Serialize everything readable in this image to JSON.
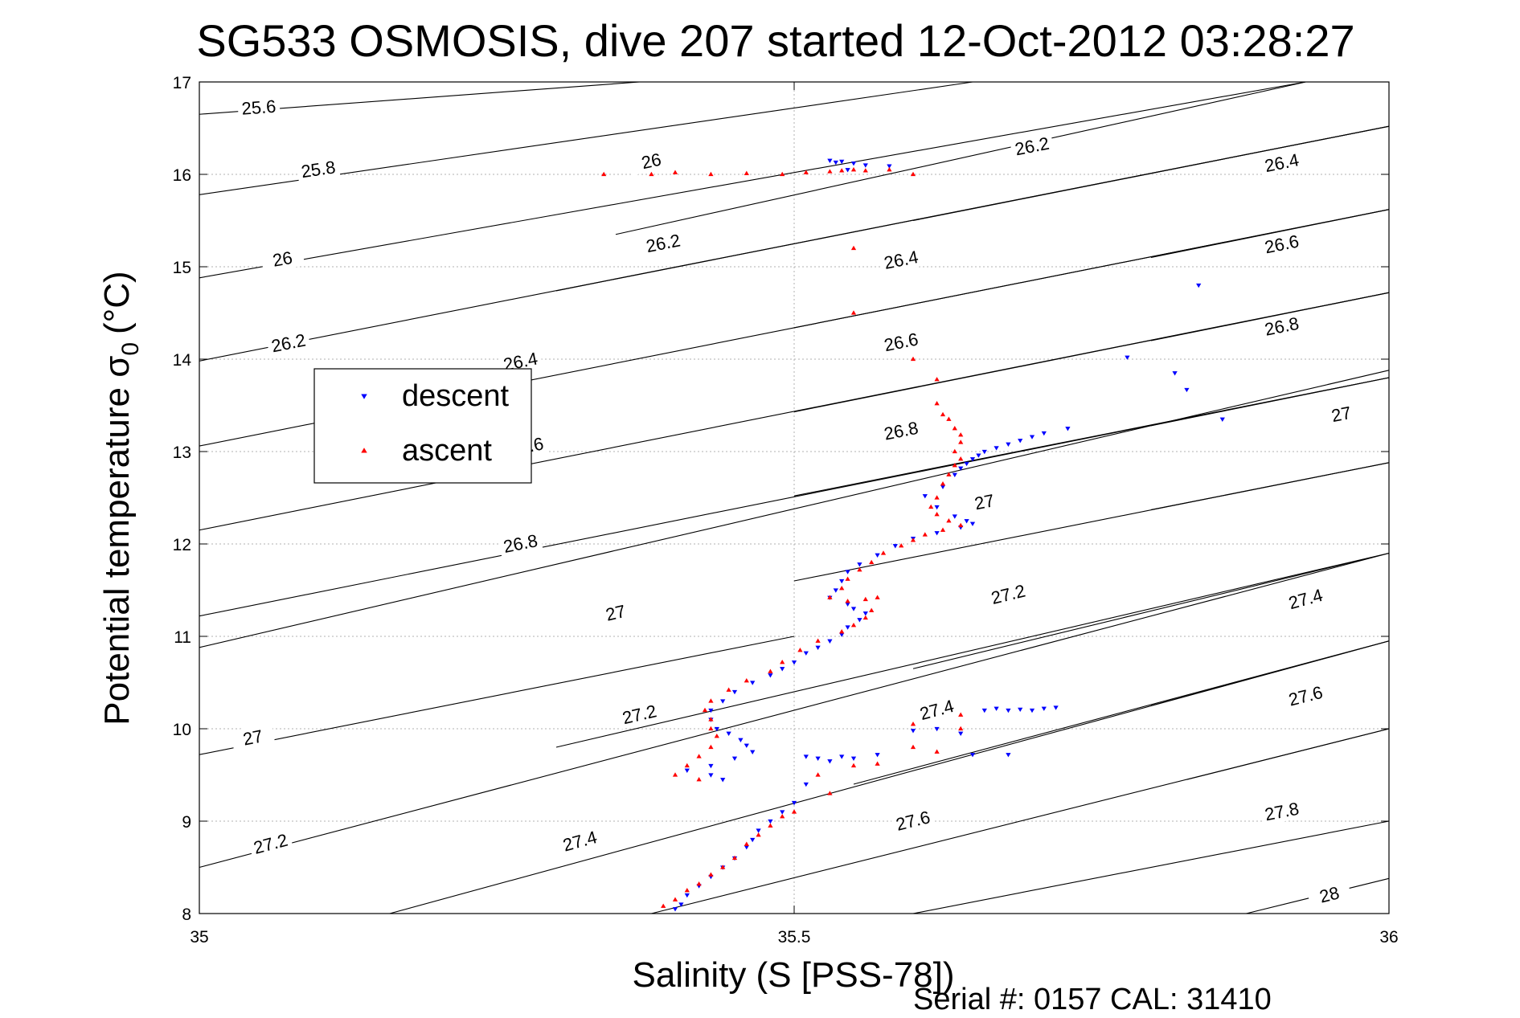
{
  "chart_data": {
    "type": "scatter",
    "title": "SG533 OSMOSIS, dive 207 started 12-Oct-2012 03:28:27",
    "xlabel": "Salinity (S [PSS-78])",
    "ylabel_main": "Potential temperature σ",
    "ylabel_sub": "0",
    "ylabel_unit": "(°C)",
    "xlim": [
      35,
      36
    ],
    "ylim": [
      8,
      17
    ],
    "x_ticks": [
      35,
      35.5,
      36
    ],
    "x_tick_labels": [
      "35",
      "35.5",
      "36"
    ],
    "y_ticks": [
      8,
      9,
      10,
      11,
      12,
      13,
      14,
      15,
      16,
      17
    ],
    "y_tick_labels": [
      "8",
      "9",
      "10",
      "11",
      "12",
      "13",
      "14",
      "15",
      "16",
      "17"
    ],
    "grid": true,
    "legend_position": "upper-left",
    "footer": "Serial #: 0157  CAL: 31410",
    "contour_lines": [
      {
        "label": "25.6",
        "x0": 35,
        "y0": 16.65,
        "x1": 35.37,
        "y1": 17.0,
        "lx": 35.05,
        "ly": 16.72
      },
      {
        "label": "25.8",
        "x0": 35,
        "y0": 15.78,
        "x1": 35.65,
        "y1": 17.0,
        "lx": 35.1,
        "ly": 16.05
      },
      {
        "label": "26",
        "x0": 35,
        "y0": 14.88,
        "x1": 35.93,
        "y1": 17.0,
        "lx": 35.07,
        "ly": 15.08
      },
      {
        "label": "26",
        "x0": 35.35,
        "y0": 15.35,
        "x1": 35.93,
        "y1": 17.0,
        "lx": 35.38,
        "ly": 16.14
      },
      {
        "label": "26.2",
        "x0": 35,
        "y0": 13.98,
        "x1": 36,
        "y1": 16.52,
        "lx": 35.075,
        "ly": 14.17
      },
      {
        "label": "26.2",
        "x0": 35.3,
        "y0": 14.74,
        "x1": 36,
        "y1": 16.52,
        "lx": 35.39,
        "ly": 15.25
      },
      {
        "label": "26.2",
        "x0": 35.6,
        "y0": 15.5,
        "x1": 36,
        "y1": 16.52,
        "lx": 35.7,
        "ly": 16.3
      },
      {
        "label": "26.4",
        "x0": 35,
        "y0": 13.06,
        "x1": 36,
        "y1": 15.62,
        "lx": 35.27,
        "ly": 13.97
      },
      {
        "label": "26.4",
        "x0": 35.5,
        "y0": 14.34,
        "x1": 36,
        "y1": 15.62,
        "lx": 35.59,
        "ly": 15.07
      },
      {
        "label": "26.4",
        "x0": 35.8,
        "y0": 15.1,
        "x1": 36,
        "y1": 15.62,
        "lx": 35.91,
        "ly": 16.12
      },
      {
        "label": "26.6",
        "x0": 35,
        "y0": 12.15,
        "x1": 36,
        "y1": 14.72,
        "lx": 35.275,
        "ly": 13.05
      },
      {
        "label": "26.6",
        "x0": 35.5,
        "y0": 13.43,
        "x1": 36,
        "y1": 14.72,
        "lx": 35.59,
        "ly": 14.18
      },
      {
        "label": "26.6",
        "x0": 35.8,
        "y0": 14.2,
        "x1": 36,
        "y1": 14.72,
        "lx": 35.91,
        "ly": 15.24
      },
      {
        "label": "26.8",
        "x0": 35,
        "y0": 11.22,
        "x1": 36,
        "y1": 13.8,
        "lx": 35.27,
        "ly": 12.0
      },
      {
        "label": "26.8",
        "x0": 35.5,
        "y0": 12.52,
        "x1": 36,
        "y1": 13.8,
        "lx": 35.59,
        "ly": 13.22
      },
      {
        "label": "26.8",
        "x0": 35.8,
        "y0": 13.28,
        "x1": 36,
        "y1": 13.8,
        "lx": 35.91,
        "ly": 14.35
      },
      {
        "label": "27",
        "x0": 35,
        "y0": 10.88,
        "x1": 36,
        "y1": 13.88,
        "lx": 35.35,
        "ly": 11.25
      },
      {
        "label": "27",
        "x0": 35.5,
        "y0": 11.6,
        "x1": 36,
        "y1": 12.88,
        "lx": 35.66,
        "ly": 12.45
      },
      {
        "label": "27",
        "x0": 35.8,
        "y0": 12.37,
        "x1": 36,
        "y1": 12.88,
        "lx": 35.96,
        "ly": 13.4
      },
      {
        "label": "27",
        "x0": 35,
        "y0": 9.72,
        "x1": 35.5,
        "y1": 11.0,
        "lx": 35.045,
        "ly": 9.9
      },
      {
        "label": "27.2",
        "x0": 35,
        "y0": 8.5,
        "x1": 36,
        "y1": 11.9,
        "lx": 35.06,
        "ly": 8.75
      },
      {
        "label": "27.2",
        "x0": 35.3,
        "y0": 9.8,
        "x1": 36,
        "y1": 11.9,
        "lx": 35.37,
        "ly": 10.15
      },
      {
        "label": "27.2",
        "x0": 35.6,
        "y0": 10.65,
        "x1": 36,
        "y1": 11.9,
        "lx": 35.68,
        "ly": 11.45
      },
      {
        "label": "27.4",
        "x0": 35.16,
        "y0": 8.0,
        "x1": 36,
        "y1": 10.95,
        "lx": 35.32,
        "ly": 8.78
      },
      {
        "label": "27.4",
        "x0": 35.55,
        "y0": 9.4,
        "x1": 36,
        "y1": 10.95,
        "lx": 35.62,
        "ly": 10.2
      },
      {
        "label": "27.4",
        "x0": 35.8,
        "y0": 10.25,
        "x1": 36,
        "y1": 10.95,
        "lx": 35.93,
        "ly": 11.4
      },
      {
        "label": "27.6",
        "x0": 35.38,
        "y0": 8.0,
        "x1": 36,
        "y1": 10.0,
        "lx": 35.6,
        "ly": 9.0
      },
      {
        "label": "27.6",
        "x0": 35.83,
        "y0": 9.45,
        "x1": 36,
        "y1": 10.0,
        "lx": 35.93,
        "ly": 10.35
      },
      {
        "label": "27.8",
        "x0": 35.6,
        "y0": 8.0,
        "x1": 36,
        "y1": 9.0,
        "lx": 35.91,
        "ly": 9.1
      },
      {
        "label": "28",
        "x0": 35.88,
        "y0": 8.0,
        "x1": 36,
        "y1": 8.38,
        "lx": 35.95,
        "ly": 8.2
      }
    ],
    "series": [
      {
        "name": "descent",
        "marker": "triangle-down",
        "color": "#0000ff",
        "points": [
          [
            35.53,
            16.15
          ],
          [
            35.535,
            16.13
          ],
          [
            35.54,
            16.14
          ],
          [
            35.55,
            16.12
          ],
          [
            35.56,
            16.1
          ],
          [
            35.545,
            16.05
          ],
          [
            35.58,
            16.09
          ],
          [
            35.84,
            14.8
          ],
          [
            35.78,
            14.02
          ],
          [
            35.82,
            13.85
          ],
          [
            35.83,
            13.67
          ],
          [
            35.86,
            13.35
          ],
          [
            35.73,
            13.25
          ],
          [
            35.71,
            13.2
          ],
          [
            35.7,
            13.16
          ],
          [
            35.69,
            13.12
          ],
          [
            35.68,
            13.08
          ],
          [
            35.67,
            13.04
          ],
          [
            35.66,
            13.0
          ],
          [
            35.655,
            12.96
          ],
          [
            35.65,
            12.92
          ],
          [
            35.645,
            12.87
          ],
          [
            35.64,
            12.82
          ],
          [
            35.635,
            12.75
          ],
          [
            35.625,
            12.62
          ],
          [
            35.61,
            12.52
          ],
          [
            35.62,
            12.4
          ],
          [
            35.635,
            12.3
          ],
          [
            35.645,
            12.25
          ],
          [
            35.65,
            12.22
          ],
          [
            35.64,
            12.18
          ],
          [
            35.62,
            12.12
          ],
          [
            35.6,
            12.06
          ],
          [
            35.585,
            11.98
          ],
          [
            35.57,
            11.88
          ],
          [
            35.555,
            11.78
          ],
          [
            35.545,
            11.7
          ],
          [
            35.54,
            11.6
          ],
          [
            35.535,
            11.5
          ],
          [
            35.53,
            11.42
          ],
          [
            35.545,
            11.35
          ],
          [
            35.55,
            11.3
          ],
          [
            35.56,
            11.25
          ],
          [
            35.555,
            11.18
          ],
          [
            35.545,
            11.1
          ],
          [
            35.54,
            11.02
          ],
          [
            35.53,
            10.95
          ],
          [
            35.52,
            10.88
          ],
          [
            35.51,
            10.82
          ],
          [
            35.5,
            10.72
          ],
          [
            35.49,
            10.65
          ],
          [
            35.48,
            10.58
          ],
          [
            35.465,
            10.5
          ],
          [
            35.45,
            10.4
          ],
          [
            35.44,
            10.3
          ],
          [
            35.43,
            10.2
          ],
          [
            35.43,
            10.1
          ],
          [
            35.435,
            10.0
          ],
          [
            35.445,
            9.95
          ],
          [
            35.455,
            9.88
          ],
          [
            35.46,
            9.82
          ],
          [
            35.465,
            9.75
          ],
          [
            35.45,
            9.68
          ],
          [
            35.43,
            9.6
          ],
          [
            35.41,
            9.55
          ],
          [
            35.43,
            9.5
          ],
          [
            35.44,
            9.45
          ],
          [
            35.51,
            9.7
          ],
          [
            35.52,
            9.68
          ],
          [
            35.53,
            9.65
          ],
          [
            35.54,
            9.7
          ],
          [
            35.55,
            9.68
          ],
          [
            35.57,
            9.72
          ],
          [
            35.6,
            9.98
          ],
          [
            35.62,
            10.0
          ],
          [
            35.64,
            9.95
          ],
          [
            35.65,
            9.72
          ],
          [
            35.68,
            9.72
          ],
          [
            35.66,
            10.2
          ],
          [
            35.67,
            10.22
          ],
          [
            35.68,
            10.2
          ],
          [
            35.69,
            10.21
          ],
          [
            35.7,
            10.2
          ],
          [
            35.71,
            10.22
          ],
          [
            35.72,
            10.23
          ],
          [
            35.51,
            9.4
          ],
          [
            35.5,
            9.2
          ],
          [
            35.49,
            9.1
          ],
          [
            35.48,
            9.0
          ],
          [
            35.47,
            8.9
          ],
          [
            35.465,
            8.8
          ],
          [
            35.46,
            8.72
          ],
          [
            35.45,
            8.6
          ],
          [
            35.44,
            8.5
          ],
          [
            35.43,
            8.4
          ],
          [
            35.42,
            8.3
          ],
          [
            35.41,
            8.2
          ],
          [
            35.405,
            8.1
          ],
          [
            35.4,
            8.05
          ]
        ]
      },
      {
        "name": "ascent",
        "marker": "triangle-up",
        "color": "#ff0000",
        "points": [
          [
            35.34,
            16.0
          ],
          [
            35.38,
            16.0
          ],
          [
            35.4,
            16.02
          ],
          [
            35.43,
            16.0
          ],
          [
            35.46,
            16.01
          ],
          [
            35.49,
            16.0
          ],
          [
            35.51,
            16.02
          ],
          [
            35.53,
            16.03
          ],
          [
            35.54,
            16.04
          ],
          [
            35.55,
            16.05
          ],
          [
            35.56,
            16.04
          ],
          [
            35.58,
            16.05
          ],
          [
            35.6,
            16.0
          ],
          [
            35.55,
            15.2
          ],
          [
            35.55,
            14.5
          ],
          [
            35.6,
            14.0
          ],
          [
            35.62,
            13.78
          ],
          [
            35.62,
            13.52
          ],
          [
            35.625,
            13.4
          ],
          [
            35.63,
            13.35
          ],
          [
            35.635,
            13.25
          ],
          [
            35.64,
            13.18
          ],
          [
            35.64,
            13.1
          ],
          [
            35.635,
            13.0
          ],
          [
            35.64,
            12.92
          ],
          [
            35.635,
            12.85
          ],
          [
            35.63,
            12.75
          ],
          [
            35.625,
            12.65
          ],
          [
            35.62,
            12.5
          ],
          [
            35.615,
            12.4
          ],
          [
            35.62,
            12.32
          ],
          [
            35.63,
            12.25
          ],
          [
            35.64,
            12.2
          ],
          [
            35.625,
            12.15
          ],
          [
            35.61,
            12.1
          ],
          [
            35.6,
            12.04
          ],
          [
            35.59,
            11.98
          ],
          [
            35.575,
            11.9
          ],
          [
            35.565,
            11.8
          ],
          [
            35.555,
            11.72
          ],
          [
            35.545,
            11.62
          ],
          [
            35.54,
            11.52
          ],
          [
            35.53,
            11.42
          ],
          [
            35.545,
            11.38
          ],
          [
            35.56,
            11.4
          ],
          [
            35.57,
            11.42
          ],
          [
            35.565,
            11.28
          ],
          [
            35.56,
            11.2
          ],
          [
            35.55,
            11.12
          ],
          [
            35.54,
            11.05
          ],
          [
            35.52,
            10.95
          ],
          [
            35.505,
            10.85
          ],
          [
            35.49,
            10.72
          ],
          [
            35.48,
            10.62
          ],
          [
            35.46,
            10.52
          ],
          [
            35.445,
            10.42
          ],
          [
            35.43,
            10.3
          ],
          [
            35.425,
            10.2
          ],
          [
            35.43,
            10.1
          ],
          [
            35.43,
            10.0
          ],
          [
            35.435,
            9.92
          ],
          [
            35.43,
            9.8
          ],
          [
            35.42,
            9.7
          ],
          [
            35.41,
            9.6
          ],
          [
            35.4,
            9.5
          ],
          [
            35.42,
            9.45
          ],
          [
            35.55,
            9.6
          ],
          [
            35.57,
            9.62
          ],
          [
            35.6,
            9.8
          ],
          [
            35.62,
            9.75
          ],
          [
            35.64,
            10.0
          ],
          [
            35.64,
            10.15
          ],
          [
            35.6,
            10.05
          ],
          [
            35.52,
            9.5
          ],
          [
            35.53,
            9.3
          ],
          [
            35.5,
            9.1
          ],
          [
            35.49,
            9.05
          ],
          [
            35.48,
            8.95
          ],
          [
            35.47,
            8.85
          ],
          [
            35.46,
            8.75
          ],
          [
            35.45,
            8.6
          ],
          [
            35.44,
            8.5
          ],
          [
            35.43,
            8.42
          ],
          [
            35.42,
            8.32
          ],
          [
            35.41,
            8.25
          ],
          [
            35.4,
            8.15
          ],
          [
            35.39,
            8.08
          ]
        ]
      }
    ]
  }
}
